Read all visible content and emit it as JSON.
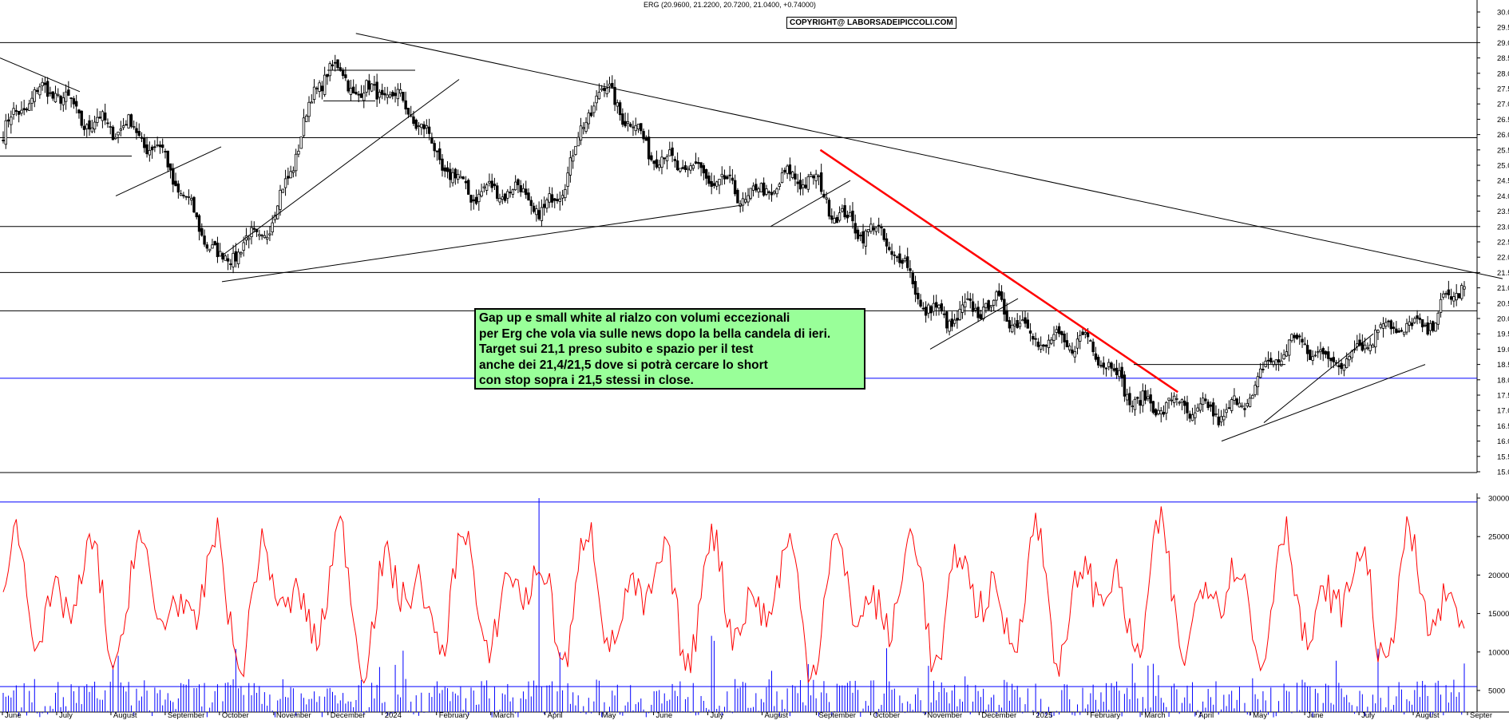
{
  "header": {
    "ohlc_text": "ERG (20.9600, 21.2200, 20.7200, 21.0400, +0.74000)",
    "copyright": "COPYRIGHT@ LABORSADEIPICCOLI.COM"
  },
  "note": {
    "lines": [
      "Gap up e small white al rialzo con volumi eccezionali",
      "per Erg che vola via sulle news dopo la bella candela di ieri.",
      "Target sui 21,1 preso subito e spazio per il test",
      "anche dei 21,4/21,5 dove si potrà cercare lo short",
      "con stop sopra i 21,5 stessi in close."
    ]
  },
  "chart_data": [
    {
      "type": "candlestick",
      "symbol": "ERG",
      "ylim": [
        14.8,
        30.2
      ],
      "y_ticks": [
        "15.0",
        "15.5",
        "16.0",
        "16.5",
        "17.0",
        "17.5",
        "18.0",
        "18.5",
        "19.0",
        "19.5",
        "20.0",
        "20.5",
        "21.0",
        "21.5",
        "22.0",
        "22.5",
        "23.0",
        "23.5",
        "24.0",
        "24.5",
        "25.0",
        "25.5",
        "26.0",
        "26.5",
        "27.0",
        "27.5",
        "28.0",
        "28.5",
        "29.0",
        "29.5",
        "30.0"
      ],
      "x_labels": [
        "June",
        "July",
        "August",
        "September",
        "October",
        "November",
        "December",
        "2024",
        "February",
        "March",
        "April",
        "May",
        "June",
        "July",
        "August",
        "September",
        "October",
        "November",
        "December",
        "2025",
        "February",
        "March",
        "April",
        "May",
        "June",
        "July",
        "August",
        "Septer"
      ],
      "last_bar": {
        "open": 20.96,
        "high": 21.22,
        "low": 20.72,
        "close": 21.04,
        "change": 0.74
      },
      "key_closes": [
        {
          "x": "June",
          "close": 26.0
        },
        {
          "x": "July",
          "close": 27.6
        },
        {
          "x": "August",
          "close": 26.0
        },
        {
          "x": "September",
          "close": 25.6
        },
        {
          "x": "October",
          "close": 21.4
        },
        {
          "x": "November",
          "close": 23.6
        },
        {
          "x": "December",
          "close": 28.0
        },
        {
          "x": "2024",
          "close": 27.6
        },
        {
          "x": "February",
          "close": 25.3
        },
        {
          "x": "March",
          "close": 24.0
        },
        {
          "x": "April",
          "close": 23.6
        },
        {
          "x": "May",
          "close": 27.2
        },
        {
          "x": "June",
          "close": 25.8
        },
        {
          "x": "July",
          "close": 24.2
        },
        {
          "x": "August",
          "close": 24.4
        },
        {
          "x": "September",
          "close": 24.2
        },
        {
          "x": "October",
          "close": 23.0
        },
        {
          "x": "November",
          "close": 20.5
        },
        {
          "x": "December",
          "close": 20.2
        },
        {
          "x": "2025",
          "close": 19.8
        },
        {
          "x": "February",
          "close": 18.9
        },
        {
          "x": "March",
          "close": 17.6
        },
        {
          "x": "April",
          "close": 16.6
        },
        {
          "x": "May",
          "close": 17.7
        },
        {
          "x": "June",
          "close": 19.1
        },
        {
          "x": "July",
          "close": 18.9
        },
        {
          "x": "August",
          "close": 19.8
        },
        {
          "x": "Septer",
          "close": 21.04
        }
      ],
      "horizontal_levels": [
        {
          "value": 29.0,
          "color": "#000000"
        },
        {
          "value": 25.9,
          "color": "#000000"
        },
        {
          "value": 23.0,
          "color": "#000000"
        },
        {
          "value": 21.5,
          "color": "#000000"
        },
        {
          "value": 20.25,
          "color": "#000000"
        },
        {
          "value": 18.05,
          "color": "#0000ff"
        }
      ],
      "trendlines": [
        {
          "from": {
            "x": "December",
            "y": 29.3
          },
          "to": {
            "x": "Septer",
            "y": 21.3
          },
          "color": "#000000"
        },
        {
          "from": {
            "x": "September",
            "y": 25.5
          },
          "to": {
            "x": "March",
            "y": 17.6
          },
          "color": "#ff0000"
        }
      ]
    },
    {
      "type": "bar+line",
      "ylim": [
        0,
        31000
      ],
      "y_ticks": [
        "5000",
        "10000",
        "15000",
        "20000",
        "25000",
        "30000"
      ],
      "reference_levels": [
        29500,
        5500
      ],
      "line_color": "#ff0000",
      "bar_color": "#0000ff",
      "oscillator_range": [
        4500,
        30000
      ],
      "volume_range": [
        0,
        30000
      ]
    }
  ],
  "colors": {
    "grid": "#000000",
    "candle": "#000000",
    "trend_red": "#ff0000",
    "support_blue": "#0000ff",
    "note_bg": "#99ff99"
  }
}
